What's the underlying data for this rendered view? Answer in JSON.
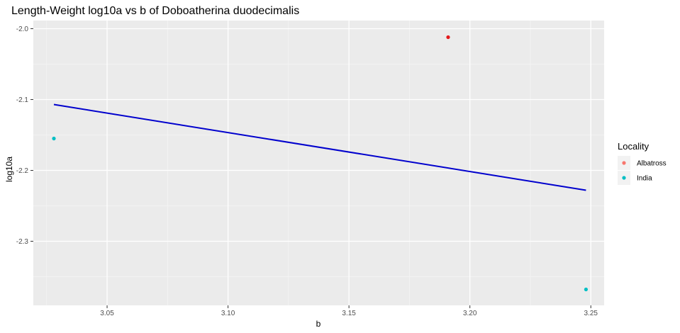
{
  "chart_data": {
    "type": "scatter",
    "title": "Length-Weight log10a vs b of Doboatherina duodecimalis",
    "xlabel": "b",
    "ylabel": "log10a",
    "xlim": [
      3.0195,
      3.2555
    ],
    "ylim": [
      -2.3905,
      -1.9885
    ],
    "x_ticks": [
      3.05,
      3.1,
      3.15,
      3.2,
      3.25
    ],
    "x_tick_labels": [
      "3.05",
      "3.10",
      "3.15",
      "3.20",
      "3.25"
    ],
    "y_ticks": [
      -2.0,
      -2.1,
      -2.2,
      -2.3
    ],
    "y_tick_labels": [
      "-2.0",
      "-2.1",
      "-2.2",
      "-2.3"
    ],
    "grid": true,
    "legend": {
      "title": "Locality",
      "position": "right",
      "entries": [
        {
          "label": "Albatross",
          "color": "#F8766D"
        },
        {
          "label": "India",
          "color": "#00BFC4"
        }
      ]
    },
    "series": [
      {
        "name": "Albatross",
        "color": "#E41A1C",
        "points": [
          {
            "x": 3.191,
            "y": -2.012
          }
        ]
      },
      {
        "name": "India",
        "color": "#00BFC4",
        "points": [
          {
            "x": 3.028,
            "y": -2.155
          },
          {
            "x": 3.248,
            "y": -2.368
          }
        ]
      }
    ],
    "trend_line": {
      "color": "#0000CD",
      "x": [
        3.028,
        3.248
      ],
      "y": [
        -2.107,
        -2.228
      ]
    }
  }
}
